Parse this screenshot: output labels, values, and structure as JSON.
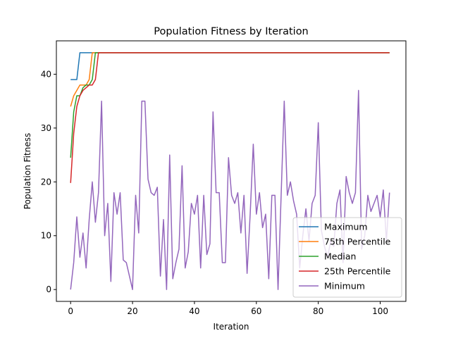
{
  "chart_data": {
    "type": "line",
    "title": "Population Fitness by Iteration",
    "xlabel": "Iteration",
    "ylabel": "Population Fitness",
    "xlim": [
      -4.6,
      108.3
    ],
    "ylim": [
      -2.2,
      46.2
    ],
    "xticks": [
      0,
      20,
      40,
      60,
      80,
      100
    ],
    "yticks": [
      0,
      10,
      20,
      30,
      40
    ],
    "grid": false,
    "legend_position": "lower-right",
    "series": [
      {
        "name": "Maximum",
        "color": "#1f77b4",
        "points": [
          [
            0,
            39
          ],
          [
            1,
            39
          ],
          [
            2,
            39
          ],
          [
            3,
            44
          ],
          [
            103,
            44
          ]
        ]
      },
      {
        "name": "75th Percentile",
        "color": "#ff7f0e",
        "points": [
          [
            0,
            34
          ],
          [
            1,
            36
          ],
          [
            2,
            37
          ],
          [
            3,
            38
          ],
          [
            4,
            38
          ],
          [
            5,
            38
          ],
          [
            6,
            39
          ],
          [
            7,
            44
          ],
          [
            103,
            44
          ]
        ]
      },
      {
        "name": "Median",
        "color": "#2ca02c",
        "points": [
          [
            0,
            24.5
          ],
          [
            1,
            33
          ],
          [
            2,
            36
          ],
          [
            3,
            36
          ],
          [
            4,
            37.5
          ],
          [
            5,
            38
          ],
          [
            6,
            38
          ],
          [
            7,
            39
          ],
          [
            8,
            44
          ],
          [
            103,
            44
          ]
        ]
      },
      {
        "name": "25th Percentile",
        "color": "#d62728",
        "points": [
          [
            0,
            19.8
          ],
          [
            1,
            29
          ],
          [
            2,
            34
          ],
          [
            3,
            36
          ],
          [
            4,
            37
          ],
          [
            5,
            37.5
          ],
          [
            6,
            38
          ],
          [
            7,
            38
          ],
          [
            8,
            39
          ],
          [
            9,
            44
          ],
          [
            103,
            44
          ]
        ]
      },
      {
        "name": "Minimum",
        "color": "#9467bd",
        "points": [
          [
            0,
            0
          ],
          [
            1,
            5
          ],
          [
            2,
            13.5
          ],
          [
            3,
            6
          ],
          [
            4,
            10.5
          ],
          [
            5,
            4
          ],
          [
            6,
            13
          ],
          [
            7,
            20
          ],
          [
            8,
            12.5
          ],
          [
            9,
            18
          ],
          [
            10,
            35
          ],
          [
            11,
            10
          ],
          [
            12,
            16
          ],
          [
            13,
            1.5
          ],
          [
            14,
            18
          ],
          [
            15,
            14
          ],
          [
            16,
            18
          ],
          [
            17,
            5.5
          ],
          [
            18,
            5
          ],
          [
            19,
            2.5
          ],
          [
            20,
            0
          ],
          [
            21,
            17.5
          ],
          [
            22,
            10.5
          ],
          [
            23,
            35
          ],
          [
            24,
            35
          ],
          [
            25,
            20.5
          ],
          [
            26,
            18
          ],
          [
            27,
            17.5
          ],
          [
            28,
            19
          ],
          [
            29,
            2.5
          ],
          [
            30,
            13
          ],
          [
            31,
            0
          ],
          [
            32,
            25
          ],
          [
            33,
            2
          ],
          [
            34,
            5
          ],
          [
            35,
            7.5
          ],
          [
            36,
            23
          ],
          [
            37,
            4
          ],
          [
            38,
            7
          ],
          [
            39,
            16
          ],
          [
            40,
            14
          ],
          [
            41,
            17.5
          ],
          [
            42,
            4
          ],
          [
            43,
            17.5
          ],
          [
            44,
            6.5
          ],
          [
            45,
            8.5
          ],
          [
            46,
            33
          ],
          [
            47,
            18
          ],
          [
            48,
            18
          ],
          [
            49,
            5
          ],
          [
            50,
            5
          ],
          [
            51,
            24.5
          ],
          [
            52,
            17.5
          ],
          [
            53,
            16
          ],
          [
            54,
            18
          ],
          [
            55,
            10.5
          ],
          [
            56,
            17.5
          ],
          [
            57,
            3
          ],
          [
            58,
            14
          ],
          [
            59,
            27
          ],
          [
            60,
            14
          ],
          [
            61,
            18
          ],
          [
            62,
            11.5
          ],
          [
            63,
            14
          ],
          [
            64,
            2
          ],
          [
            65,
            17.5
          ],
          [
            66,
            17.5
          ],
          [
            67,
            0
          ],
          [
            68,
            17.5
          ],
          [
            69,
            35
          ],
          [
            70,
            17.5
          ],
          [
            71,
            20
          ],
          [
            72,
            16.5
          ],
          [
            73,
            14
          ],
          [
            74,
            4
          ],
          [
            75,
            10
          ],
          [
            76,
            15
          ],
          [
            77,
            9
          ],
          [
            78,
            16
          ],
          [
            79,
            17.5
          ],
          [
            80,
            31
          ],
          [
            81,
            11
          ],
          [
            82,
            8
          ],
          [
            83,
            6
          ],
          [
            84,
            9
          ],
          [
            85,
            8
          ],
          [
            86,
            16
          ],
          [
            87,
            18.5
          ],
          [
            88,
            5
          ],
          [
            89,
            21
          ],
          [
            90,
            18
          ],
          [
            91,
            16
          ],
          [
            92,
            18
          ],
          [
            93,
            37
          ],
          [
            94,
            7.5
          ],
          [
            95,
            10
          ],
          [
            96,
            17.5
          ],
          [
            97,
            14.5
          ],
          [
            98,
            16
          ],
          [
            99,
            17.5
          ],
          [
            100,
            13.5
          ],
          [
            101,
            18.5
          ],
          [
            102,
            9
          ],
          [
            103,
            18
          ]
        ]
      }
    ]
  }
}
